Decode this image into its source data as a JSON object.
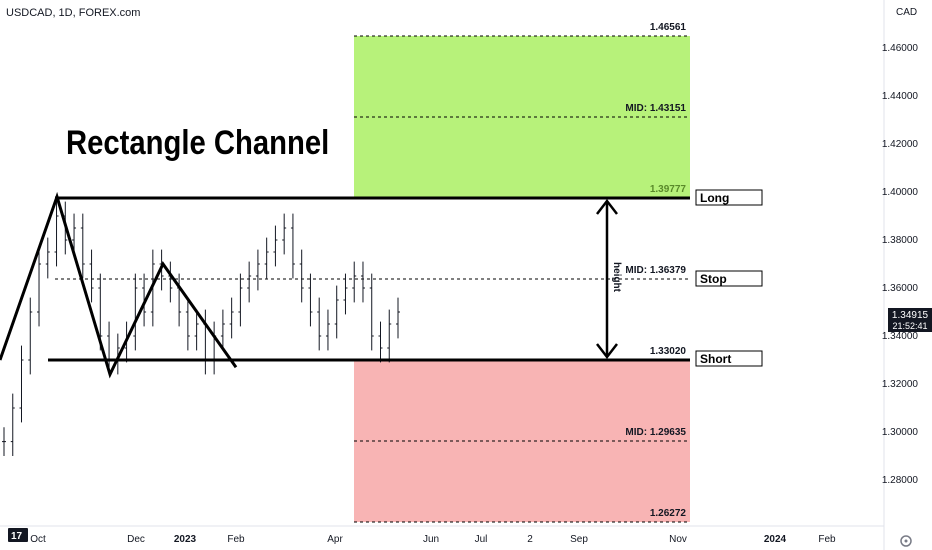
{
  "header": {
    "symbol_line": "USDCAD, 1D, FOREX.com",
    "currency": "CAD"
  },
  "annotation_title": "Rectangle Channel",
  "price_badge": {
    "value": "1.34915",
    "countdown": "21:52:41"
  },
  "colors": {
    "long_zone": "#b7f27a",
    "short_zone": "#f8b4b4",
    "line": "#000000",
    "price_bg": "#131722"
  },
  "levels": {
    "target_top": "1.46561",
    "long_mid": "MID: 1.43151",
    "long_entry": "1.39777",
    "stop_mid": "MID: 1.36379",
    "short_entry": "1.33020",
    "short_mid": "MID: 1.29635",
    "target_bottom": "1.26272"
  },
  "tags": {
    "long": "Long",
    "stop": "Stop",
    "short": "Short",
    "height": "height"
  },
  "chart_data": {
    "type": "line",
    "title": "",
    "ylim": [
      1.27,
      1.475
    ],
    "y_ticks": [
      "1.46000",
      "1.44000",
      "1.42000",
      "1.40000",
      "1.38000",
      "1.36000",
      "1.34000",
      "1.32000",
      "1.30000",
      "1.28000"
    ],
    "x_ticks": [
      "Oct",
      "Dec",
      "2023",
      "Feb",
      "Apr",
      "Jun",
      "Jul",
      "2",
      "Sep",
      "Nov",
      "2024",
      "Feb"
    ],
    "series": [
      {
        "values": [
          1.296,
          1.31,
          1.33,
          1.35,
          1.37,
          1.375,
          1.39,
          1.38,
          1.385,
          1.37,
          1.36,
          1.34,
          1.33,
          1.335,
          1.34,
          1.36,
          1.35,
          1.37,
          1.365,
          1.36,
          1.35,
          1.34,
          1.345,
          1.33,
          1.34,
          1.345,
          1.35,
          1.36,
          1.365,
          1.37,
          1.375,
          1.38,
          1.385,
          1.37,
          1.36,
          1.35,
          1.34,
          1.345,
          1.355,
          1.36,
          1.365,
          1.36,
          1.34,
          1.335,
          1.345,
          1.35
        ]
      }
    ],
    "pattern_points": [
      1.33,
      1.398,
      1.324,
      1.37,
      1.327
    ],
    "resistance": 1.398,
    "support": 1.3302
  }
}
